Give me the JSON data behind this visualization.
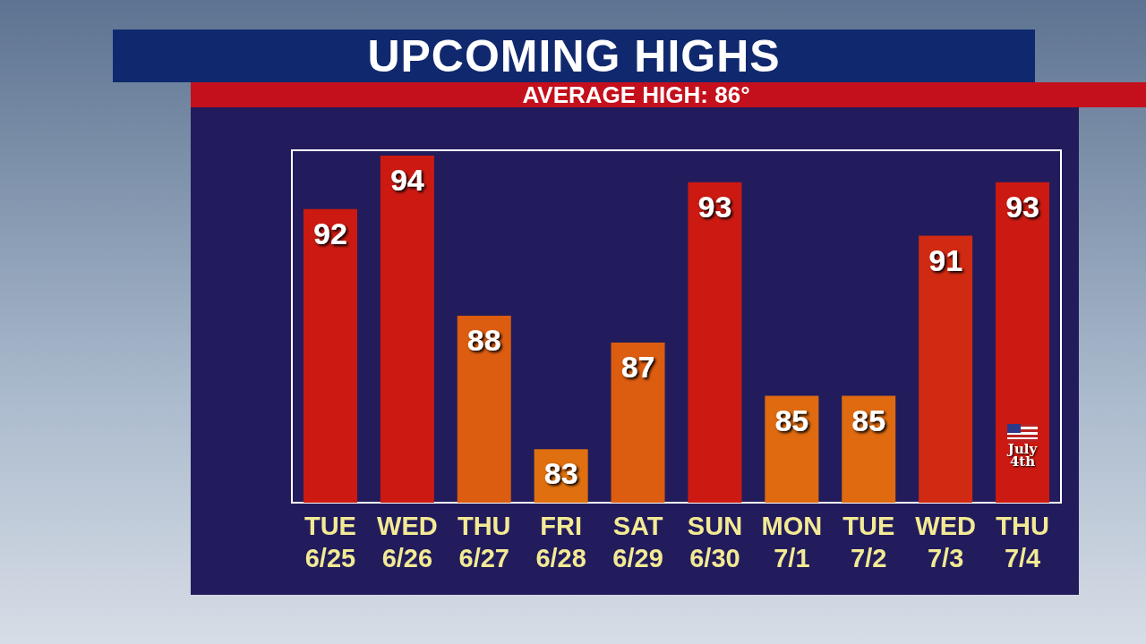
{
  "chart_data": {
    "type": "bar",
    "title": "UPCOMING HIGHS",
    "subtitle": "AVERAGE HIGH: 86°",
    "categories": [
      "TUE\n6/25",
      "WED\n6/26",
      "THU\n6/27",
      "FRI\n6/28",
      "SAT\n6/29",
      "SUN\n6/30",
      "MON\n7/1",
      "TUE\n7/2",
      "WED\n7/3",
      "THU\n7/4"
    ],
    "values": [
      92,
      94,
      88,
      83,
      87,
      93,
      85,
      85,
      91,
      93
    ],
    "colors": [
      "#cc1a12",
      "#cc1a12",
      "#dc5c10",
      "#e0700f",
      "#dc5c10",
      "#cc1a12",
      "#df6a10",
      "#df6a10",
      "#d02a12",
      "#cc1a12"
    ],
    "ylim": [
      81,
      94.2
    ],
    "data_labels": true,
    "annotations": [
      "July 4th"
    ]
  }
}
